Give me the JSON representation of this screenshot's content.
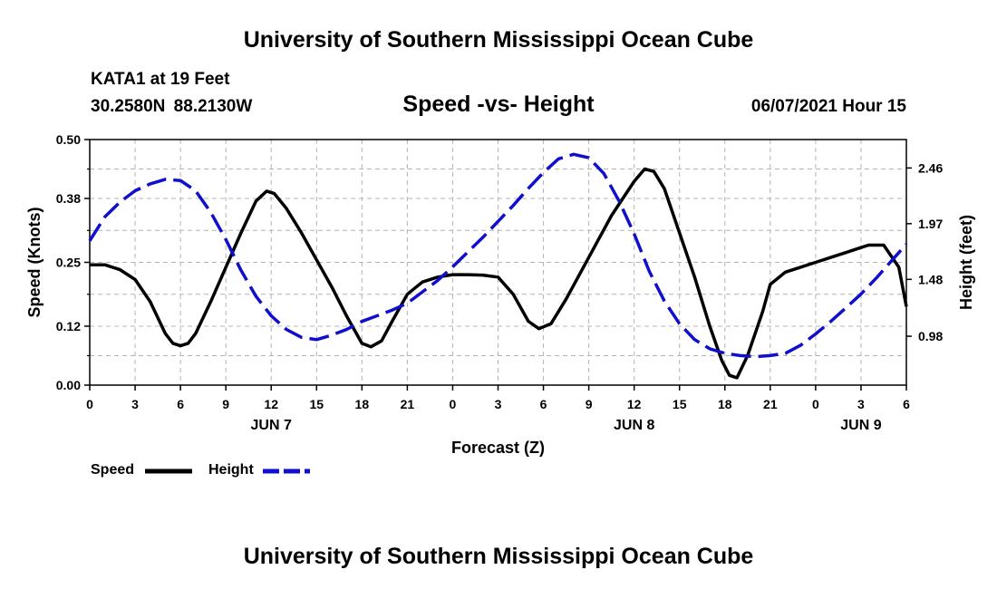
{
  "header": {
    "main_title": "University of Southern Mississippi Ocean Cube",
    "station": "KATA1 at 19 Feet",
    "coordinates": "30.2580N  88.2130W",
    "chart_title": "Speed -vs- Height",
    "date": "06/07/2021 Hour 15"
  },
  "footer": {
    "title": "University of Southern Mississippi Ocean Cube"
  },
  "legend": {
    "speed_label": "Speed",
    "height_label": "Height"
  },
  "colors": {
    "speed": "#000000",
    "height": "#1010cc",
    "grid": "#b4b4b4"
  },
  "chart_data": {
    "type": "line",
    "title": "Speed -vs- Height",
    "xlabel": "Forecast (Z)",
    "ylabel": "Speed (Knots)",
    "y2label": "Height (feet)",
    "xlim": [
      0,
      54
    ],
    "ylim": [
      0,
      0.5
    ],
    "y2lim": [
      0.55,
      2.71
    ],
    "x_tick_values": [
      0,
      3,
      6,
      9,
      12,
      15,
      18,
      21,
      24,
      27,
      30,
      33,
      36,
      39,
      42,
      45,
      48,
      51,
      54
    ],
    "x_tick_labels": [
      "0",
      "3",
      "6",
      "9",
      "12",
      "15",
      "18",
      "21",
      "0",
      "3",
      "6",
      "9",
      "12",
      "15",
      "18",
      "21",
      "0",
      "3",
      "6"
    ],
    "day_labels": [
      {
        "x": 12,
        "label": "JUN 7"
      },
      {
        "x": 36,
        "label": "JUN 8"
      },
      {
        "x": 51,
        "label": "JUN 9"
      }
    ],
    "y_ticks": [
      0.0,
      0.12,
      0.25,
      0.38,
      0.5
    ],
    "y_tick_labels": [
      "0.00",
      "0.12",
      "0.25",
      "0.38",
      "0.50"
    ],
    "y2_ticks": [
      0.98,
      1.48,
      1.97,
      2.46
    ],
    "y2_tick_labels": [
      "0.98",
      "1.48",
      "1.97",
      "2.46"
    ],
    "grid": true,
    "legend_position": "bottom-left",
    "series": [
      {
        "name": "Speed",
        "axis": "left",
        "style": "solid",
        "x": [
          0,
          1,
          2,
          3,
          4,
          5,
          5.5,
          6,
          6.5,
          7,
          8,
          9,
          10,
          11,
          11.7,
          12.2,
          13,
          14,
          15,
          16,
          17,
          18,
          18.6,
          19.3,
          20,
          21,
          22,
          23,
          24,
          25,
          26,
          27,
          28,
          29,
          29.7,
          30.5,
          31.5,
          33,
          34.5,
          36,
          36.7,
          37.3,
          38,
          39,
          40,
          41,
          41.8,
          42.3,
          42.8,
          43.5,
          44.5,
          45,
          46,
          47,
          48,
          49,
          50,
          51,
          51.5,
          52.5,
          53.5,
          54
        ],
        "values": [
          0.245,
          0.245,
          0.235,
          0.215,
          0.17,
          0.105,
          0.085,
          0.08,
          0.085,
          0.105,
          0.17,
          0.24,
          0.31,
          0.375,
          0.395,
          0.39,
          0.36,
          0.31,
          0.255,
          0.2,
          0.14,
          0.085,
          0.078,
          0.09,
          0.13,
          0.185,
          0.21,
          0.22,
          0.225,
          0.225,
          0.224,
          0.22,
          0.185,
          0.13,
          0.115,
          0.125,
          0.175,
          0.26,
          0.345,
          0.415,
          0.44,
          0.435,
          0.4,
          0.31,
          0.22,
          0.12,
          0.05,
          0.02,
          0.015,
          0.06,
          0.15,
          0.205,
          0.23,
          0.24,
          0.25,
          0.26,
          0.27,
          0.28,
          0.285,
          0.285,
          0.24,
          0.16
        ]
      },
      {
        "name": "Height",
        "axis": "right",
        "style": "dashed",
        "x": [
          0,
          1,
          2,
          3,
          4,
          5,
          6,
          7,
          8,
          9,
          10,
          11,
          12,
          13,
          14,
          15,
          16,
          17,
          18,
          19,
          20,
          21,
          22,
          23,
          24,
          25,
          26,
          27,
          28,
          29,
          30,
          31,
          32,
          33,
          34,
          35,
          36,
          37,
          38,
          39,
          40,
          41,
          42,
          43,
          44,
          45,
          46,
          47,
          48,
          49,
          50,
          51,
          52,
          53,
          54
        ],
        "values": [
          1.82,
          2.03,
          2.16,
          2.26,
          2.32,
          2.36,
          2.35,
          2.26,
          2.07,
          1.83,
          1.56,
          1.33,
          1.16,
          1.04,
          0.97,
          0.95,
          0.99,
          1.04,
          1.11,
          1.16,
          1.21,
          1.27,
          1.37,
          1.47,
          1.59,
          1.72,
          1.85,
          1.99,
          2.13,
          2.28,
          2.42,
          2.54,
          2.58,
          2.55,
          2.41,
          2.17,
          1.88,
          1.55,
          1.29,
          1.09,
          0.95,
          0.87,
          0.83,
          0.81,
          0.8,
          0.81,
          0.83,
          0.9,
          1.0,
          1.11,
          1.23,
          1.35,
          1.49,
          1.64,
          1.79
        ]
      }
    ]
  }
}
